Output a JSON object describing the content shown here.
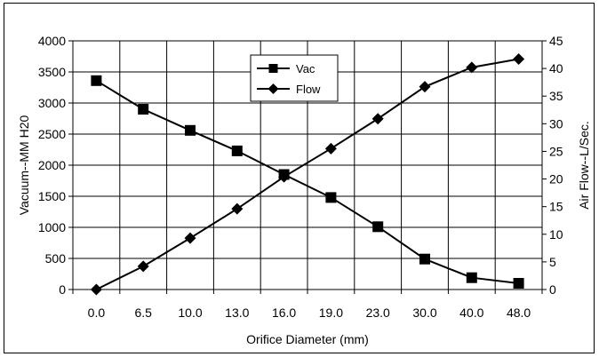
{
  "chart_data": {
    "type": "line",
    "categories": [
      "0.0",
      "6.5",
      "10.0",
      "13.0",
      "16.0",
      "19.0",
      "23.0",
      "30.0",
      "40.0",
      "48.0"
    ],
    "xlabel": "Orifice Diameter (mm)",
    "ylabel": "Vacuum--MM H20",
    "y2label": "Air Flow--L/Sec.",
    "ylim": [
      0,
      4000
    ],
    "y2lim": [
      0,
      45
    ],
    "yticks": [
      0,
      500,
      1000,
      1500,
      2000,
      2500,
      3000,
      3500,
      4000
    ],
    "y2ticks": [
      0,
      5,
      10,
      15,
      20,
      25,
      30,
      35,
      40,
      45
    ],
    "grid": true,
    "legend_position": "top-center",
    "series": [
      {
        "name": "Vac",
        "axis": "left",
        "marker": "square",
        "values": [
          3360,
          2900,
          2560,
          2230,
          1850,
          1480,
          1010,
          490,
          190,
          100
        ]
      },
      {
        "name": "Flow",
        "axis": "right",
        "marker": "diamond",
        "values": [
          0,
          4.2,
          9.3,
          14.6,
          20.4,
          25.5,
          30.9,
          36.7,
          40.2,
          41.7
        ]
      }
    ]
  }
}
